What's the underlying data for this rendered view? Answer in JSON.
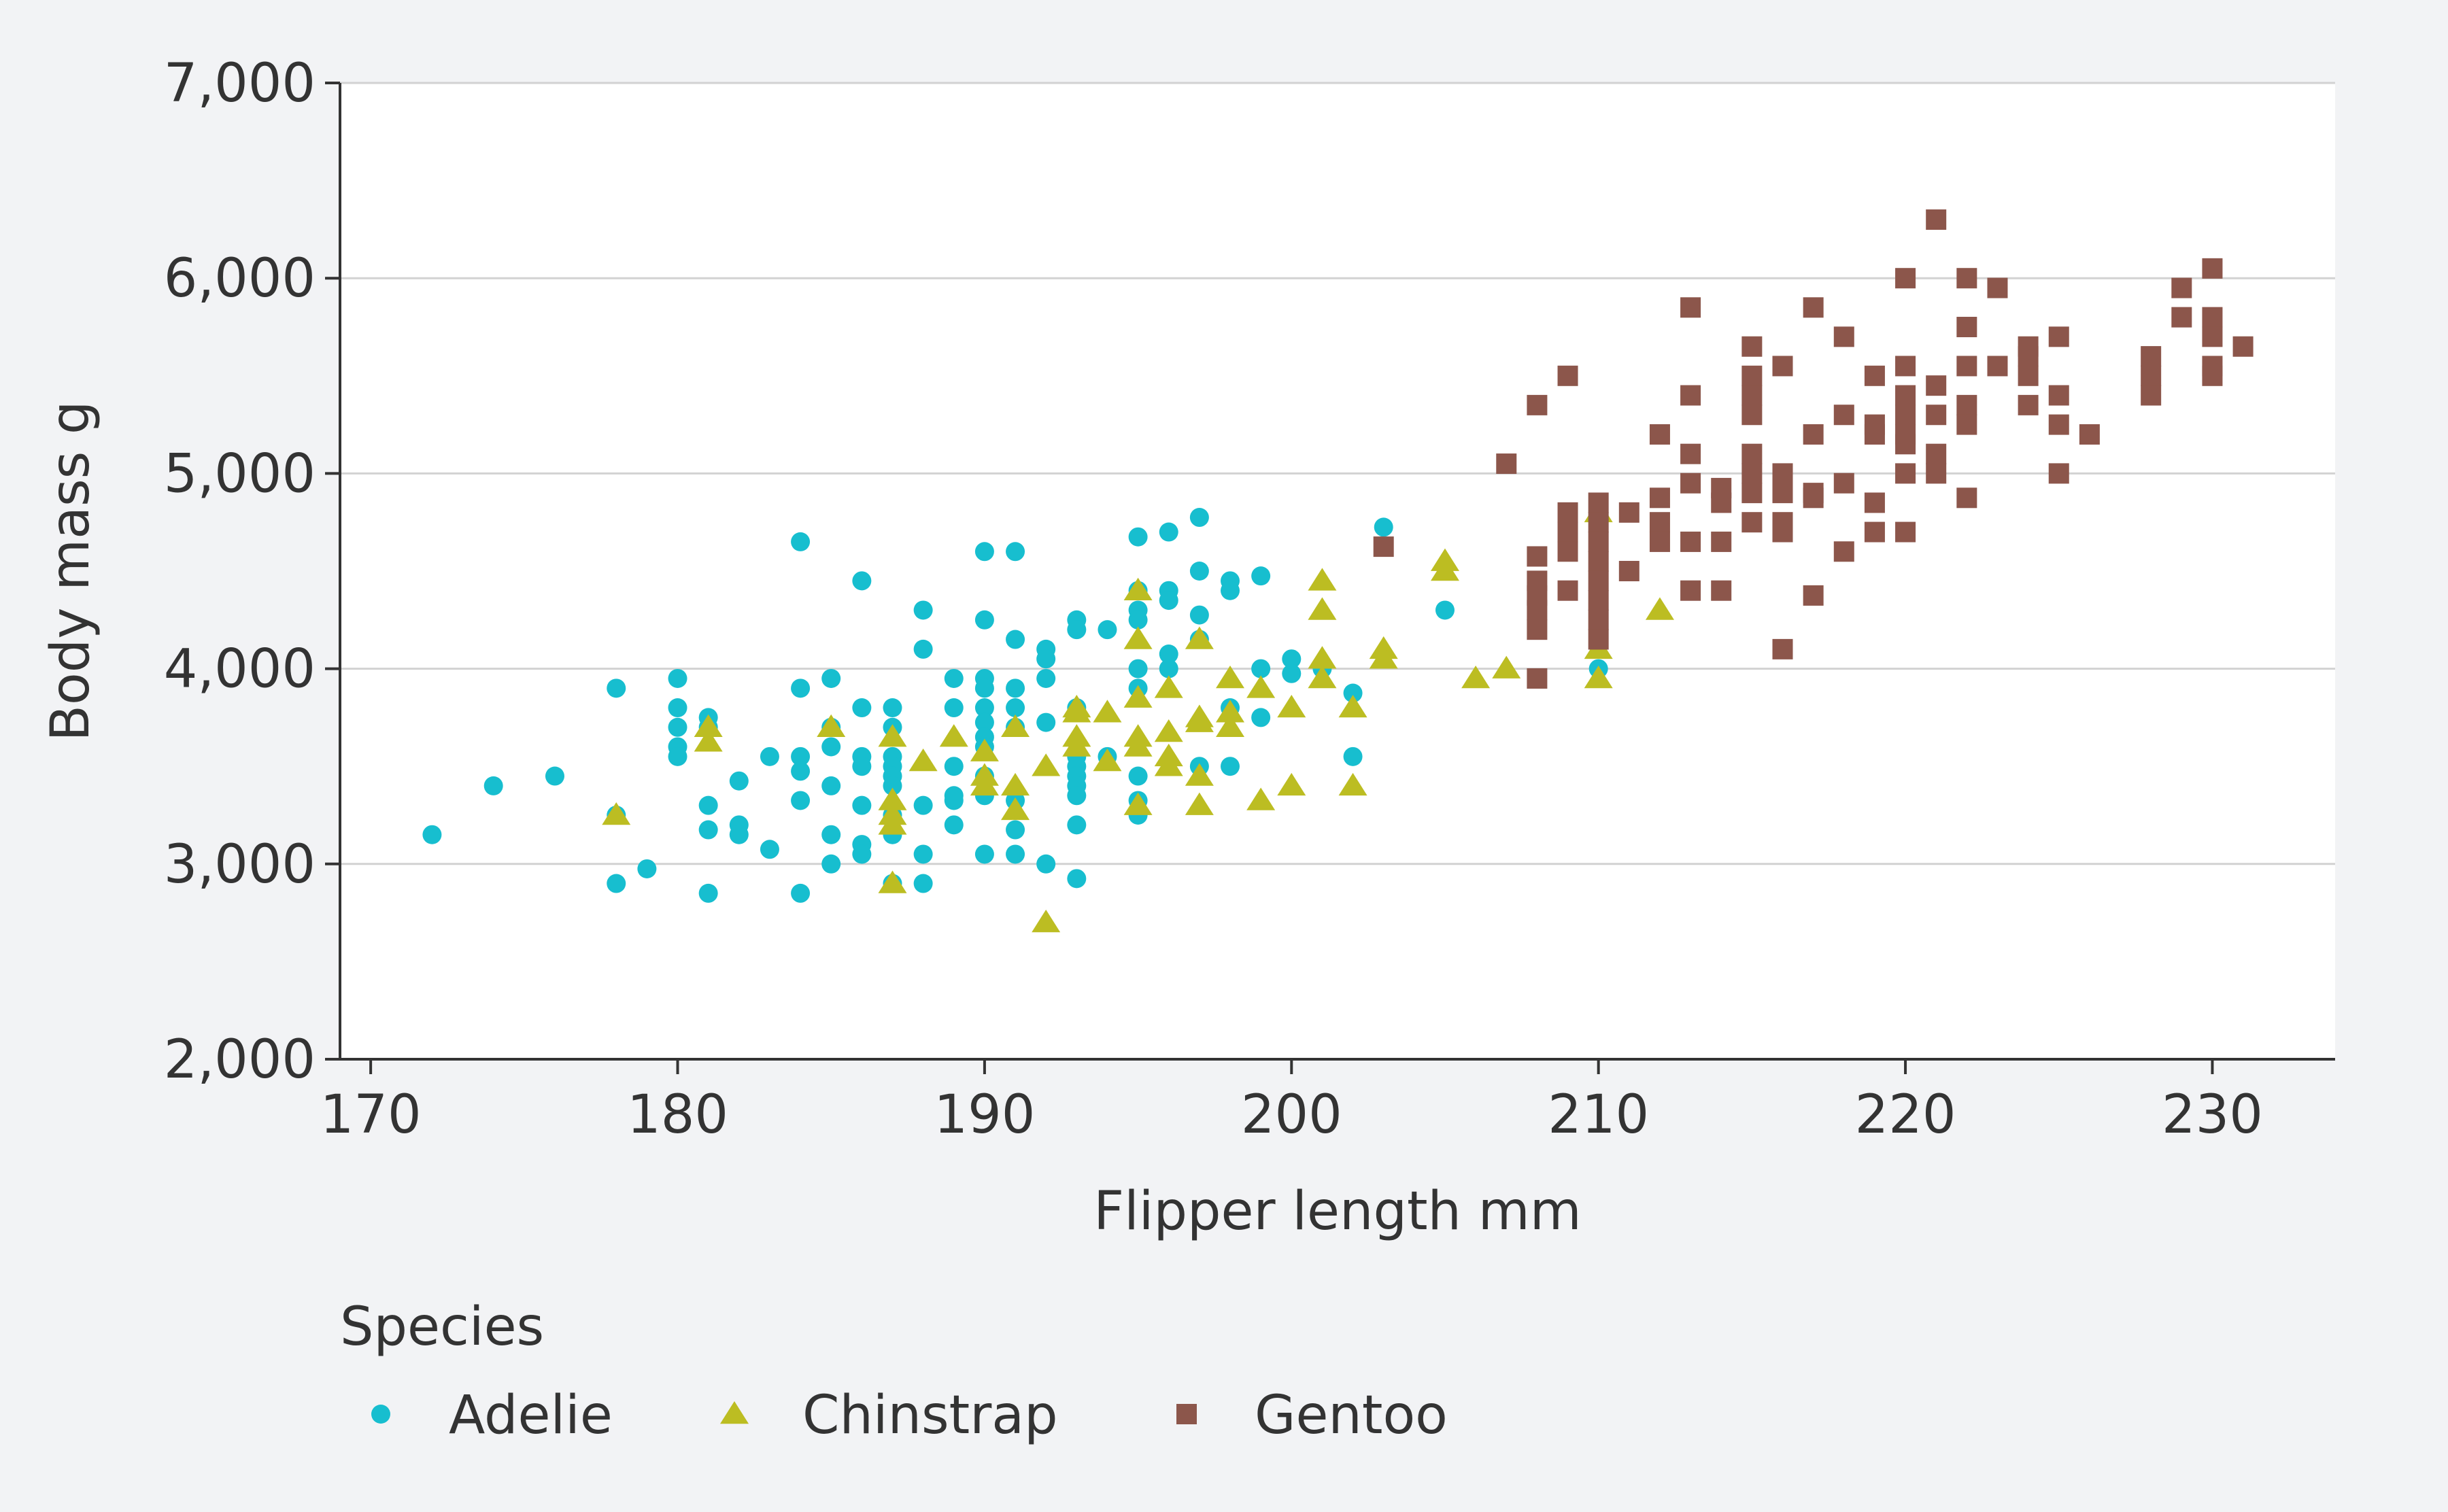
{
  "chart_data": {
    "type": "scatter",
    "xlabel": "Flipper length mm",
    "ylabel": "Body mass g",
    "xlim": [
      169,
      234
    ],
    "ylim": [
      2000,
      7000
    ],
    "x_ticks": [
      170,
      180,
      190,
      200,
      210,
      220,
      230
    ],
    "y_ticks": [
      2000,
      3000,
      4000,
      5000,
      6000,
      7000
    ],
    "x_tick_labels": [
      "170",
      "180",
      "190",
      "200",
      "210",
      "220",
      "230"
    ],
    "y_tick_labels": [
      "2,000",
      "3,000",
      "4,000",
      "5,000",
      "6,000",
      "7,000"
    ],
    "grid": "horizontal",
    "legend": {
      "title": "Species",
      "placement": "bottom-left"
    },
    "series": [
      {
        "name": "Adelie",
        "marker": "circle",
        "color": "#17becf",
        "points": [
          [
            172,
            3150
          ],
          [
            174,
            3400
          ],
          [
            176,
            3450
          ],
          [
            178,
            3900
          ],
          [
            178,
            3250
          ],
          [
            178,
            2900
          ],
          [
            179,
            2975
          ],
          [
            180,
            3950
          ],
          [
            180,
            3800
          ],
          [
            180,
            3700
          ],
          [
            180,
            3600
          ],
          [
            180,
            3550
          ],
          [
            181,
            3750
          ],
          [
            181,
            3700
          ],
          [
            181,
            3300
          ],
          [
            181,
            3175
          ],
          [
            181,
            2850
          ],
          [
            182,
            3425
          ],
          [
            182,
            3200
          ],
          [
            182,
            3150
          ],
          [
            183,
            3550
          ],
          [
            183,
            3075
          ],
          [
            184,
            4650
          ],
          [
            184,
            3900
          ],
          [
            184,
            3550
          ],
          [
            184,
            3475
          ],
          [
            184,
            3325
          ],
          [
            184,
            2850
          ],
          [
            185,
            3950
          ],
          [
            185,
            3700
          ],
          [
            185,
            3600
          ],
          [
            185,
            3400
          ],
          [
            185,
            3150
          ],
          [
            185,
            3000
          ],
          [
            186,
            4450
          ],
          [
            186,
            3800
          ],
          [
            186,
            3550
          ],
          [
            186,
            3500
          ],
          [
            186,
            3300
          ],
          [
            186,
            3100
          ],
          [
            186,
            3050
          ],
          [
            187,
            3800
          ],
          [
            187,
            3700
          ],
          [
            187,
            3550
          ],
          [
            187,
            3500
          ],
          [
            187,
            3450
          ],
          [
            187,
            3400
          ],
          [
            187,
            3250
          ],
          [
            187,
            3150
          ],
          [
            187,
            2900
          ],
          [
            188,
            4300
          ],
          [
            188,
            4100
          ],
          [
            188,
            3300
          ],
          [
            188,
            3050
          ],
          [
            188,
            2900
          ],
          [
            189,
            3950
          ],
          [
            189,
            3800
          ],
          [
            189,
            3500
          ],
          [
            189,
            3350
          ],
          [
            189,
            3325
          ],
          [
            189,
            3200
          ],
          [
            190,
            4600
          ],
          [
            190,
            4250
          ],
          [
            190,
            3950
          ],
          [
            190,
            3900
          ],
          [
            190,
            3800
          ],
          [
            190,
            3725
          ],
          [
            190,
            3650
          ],
          [
            190,
            3600
          ],
          [
            190,
            3450
          ],
          [
            190,
            3350
          ],
          [
            190,
            3050
          ],
          [
            191,
            4600
          ],
          [
            191,
            4150
          ],
          [
            191,
            3900
          ],
          [
            191,
            3800
          ],
          [
            191,
            3700
          ],
          [
            191,
            3325
          ],
          [
            191,
            3175
          ],
          [
            191,
            3050
          ],
          [
            192,
            4100
          ],
          [
            192,
            4050
          ],
          [
            192,
            3950
          ],
          [
            192,
            3725
          ],
          [
            192,
            3000
          ],
          [
            193,
            4250
          ],
          [
            193,
            4200
          ],
          [
            193,
            3800
          ],
          [
            193,
            3550
          ],
          [
            193,
            3500
          ],
          [
            193,
            3450
          ],
          [
            193,
            3400
          ],
          [
            193,
            3350
          ],
          [
            193,
            3200
          ],
          [
            193,
            2925
          ],
          [
            194,
            4200
          ],
          [
            194,
            3550
          ],
          [
            195,
            4675
          ],
          [
            195,
            4400
          ],
          [
            195,
            4300
          ],
          [
            195,
            4250
          ],
          [
            195,
            4000
          ],
          [
            195,
            3900
          ],
          [
            195,
            3450
          ],
          [
            195,
            3325
          ],
          [
            195,
            3250
          ],
          [
            196,
            4700
          ],
          [
            196,
            4400
          ],
          [
            196,
            4350
          ],
          [
            196,
            4075
          ],
          [
            196,
            4000
          ],
          [
            197,
            4775
          ],
          [
            197,
            4500
          ],
          [
            197,
            4275
          ],
          [
            197,
            4150
          ],
          [
            197,
            3500
          ],
          [
            198,
            4450
          ],
          [
            198,
            4400
          ],
          [
            198,
            3800
          ],
          [
            198,
            3500
          ],
          [
            199,
            4475
          ],
          [
            199,
            4000
          ],
          [
            199,
            3750
          ],
          [
            200,
            4050
          ],
          [
            200,
            3975
          ],
          [
            201,
            4000
          ],
          [
            202,
            3875
          ],
          [
            202,
            3550
          ],
          [
            203,
            4725
          ],
          [
            205,
            4300
          ],
          [
            210,
            4000
          ]
        ]
      },
      {
        "name": "Chinstrap",
        "marker": "triangle",
        "color": "#bcbd22",
        "points": [
          [
            178,
            3250
          ],
          [
            181,
            3700
          ],
          [
            181,
            3625
          ],
          [
            185,
            3700
          ],
          [
            187,
            3650
          ],
          [
            187,
            3325
          ],
          [
            187,
            3250
          ],
          [
            187,
            3200
          ],
          [
            187,
            2900
          ],
          [
            188,
            3525
          ],
          [
            189,
            3650
          ],
          [
            190,
            3575
          ],
          [
            190,
            3450
          ],
          [
            190,
            3400
          ],
          [
            191,
            3700
          ],
          [
            191,
            3400
          ],
          [
            191,
            3275
          ],
          [
            192,
            3500
          ],
          [
            192,
            2700
          ],
          [
            193,
            3800
          ],
          [
            193,
            3775
          ],
          [
            193,
            3650
          ],
          [
            193,
            3600
          ],
          [
            194,
            3775
          ],
          [
            194,
            3525
          ],
          [
            195,
            4400
          ],
          [
            195,
            4150
          ],
          [
            195,
            3850
          ],
          [
            195,
            3650
          ],
          [
            195,
            3600
          ],
          [
            195,
            3300
          ],
          [
            196,
            3900
          ],
          [
            196,
            3675
          ],
          [
            196,
            3550
          ],
          [
            196,
            3500
          ],
          [
            197,
            4150
          ],
          [
            197,
            3750
          ],
          [
            197,
            3725
          ],
          [
            197,
            3450
          ],
          [
            197,
            3300
          ],
          [
            198,
            3950
          ],
          [
            198,
            3775
          ],
          [
            198,
            3700
          ],
          [
            199,
            3900
          ],
          [
            199,
            3325
          ],
          [
            200,
            3800
          ],
          [
            200,
            3400
          ],
          [
            201,
            4450
          ],
          [
            201,
            4300
          ],
          [
            201,
            4050
          ],
          [
            201,
            3950
          ],
          [
            202,
            3800
          ],
          [
            202,
            3400
          ],
          [
            203,
            4100
          ],
          [
            203,
            4050
          ],
          [
            205,
            4550
          ],
          [
            205,
            4500
          ],
          [
            206,
            3950
          ],
          [
            207,
            4000
          ],
          [
            210,
            4800
          ],
          [
            210,
            4100
          ],
          [
            210,
            3950
          ],
          [
            212,
            4300
          ]
        ]
      },
      {
        "name": "Gentoo",
        "marker": "square",
        "color": "#8c564b",
        "points": [
          [
            203,
            4625
          ],
          [
            207,
            5050
          ],
          [
            208,
            5350
          ],
          [
            208,
            4575
          ],
          [
            208,
            4450
          ],
          [
            208,
            4375
          ],
          [
            208,
            4300
          ],
          [
            208,
            4200
          ],
          [
            208,
            3950
          ],
          [
            209,
            5500
          ],
          [
            209,
            4800
          ],
          [
            209,
            4700
          ],
          [
            209,
            4600
          ],
          [
            209,
            4400
          ],
          [
            210,
            4850
          ],
          [
            210,
            4750
          ],
          [
            210,
            4650
          ],
          [
            210,
            4550
          ],
          [
            210,
            4450
          ],
          [
            210,
            4350
          ],
          [
            210,
            4250
          ],
          [
            210,
            4150
          ],
          [
            211,
            4800
          ],
          [
            211,
            4500
          ],
          [
            212,
            5200
          ],
          [
            212,
            4875
          ],
          [
            212,
            4750
          ],
          [
            212,
            4650
          ],
          [
            213,
            5850
          ],
          [
            213,
            5400
          ],
          [
            213,
            5100
          ],
          [
            213,
            4950
          ],
          [
            213,
            4650
          ],
          [
            213,
            4400
          ],
          [
            214,
            4925
          ],
          [
            214,
            4850
          ],
          [
            214,
            4650
          ],
          [
            214,
            4400
          ],
          [
            215,
            5650
          ],
          [
            215,
            5500
          ],
          [
            215,
            5400
          ],
          [
            215,
            5300
          ],
          [
            215,
            5100
          ],
          [
            215,
            5000
          ],
          [
            215,
            4900
          ],
          [
            215,
            4750
          ],
          [
            216,
            5550
          ],
          [
            216,
            5000
          ],
          [
            216,
            4900
          ],
          [
            216,
            4750
          ],
          [
            216,
            4700
          ],
          [
            216,
            4100
          ],
          [
            217,
            5850
          ],
          [
            217,
            5200
          ],
          [
            217,
            4900
          ],
          [
            217,
            4875
          ],
          [
            217,
            4375
          ],
          [
            218,
            5700
          ],
          [
            218,
            5300
          ],
          [
            218,
            4950
          ],
          [
            218,
            4600
          ],
          [
            219,
            5500
          ],
          [
            219,
            5250
          ],
          [
            219,
            5200
          ],
          [
            219,
            4850
          ],
          [
            219,
            4700
          ],
          [
            220,
            6000
          ],
          [
            220,
            5550
          ],
          [
            220,
            5400
          ],
          [
            220,
            5300
          ],
          [
            220,
            5200
          ],
          [
            220,
            5150
          ],
          [
            220,
            5000
          ],
          [
            220,
            4700
          ],
          [
            221,
            6300
          ],
          [
            221,
            5450
          ],
          [
            221,
            5300
          ],
          [
            221,
            5100
          ],
          [
            221,
            5000
          ],
          [
            222,
            6000
          ],
          [
            222,
            5750
          ],
          [
            222,
            5550
          ],
          [
            222,
            5350
          ],
          [
            222,
            5250
          ],
          [
            222,
            4875
          ],
          [
            223,
            5950
          ],
          [
            223,
            5550
          ],
          [
            224,
            5650
          ],
          [
            224,
            5600
          ],
          [
            224,
            5500
          ],
          [
            224,
            5350
          ],
          [
            225,
            5700
          ],
          [
            225,
            5400
          ],
          [
            225,
            5250
          ],
          [
            225,
            5000
          ],
          [
            226,
            5200
          ],
          [
            228,
            5600
          ],
          [
            228,
            5500
          ],
          [
            228,
            5400
          ],
          [
            229,
            5950
          ],
          [
            229,
            5800
          ],
          [
            230,
            6050
          ],
          [
            230,
            5800
          ],
          [
            230,
            5700
          ],
          [
            230,
            5550
          ],
          [
            230,
            5500
          ],
          [
            231,
            5650
          ]
        ]
      }
    ]
  }
}
